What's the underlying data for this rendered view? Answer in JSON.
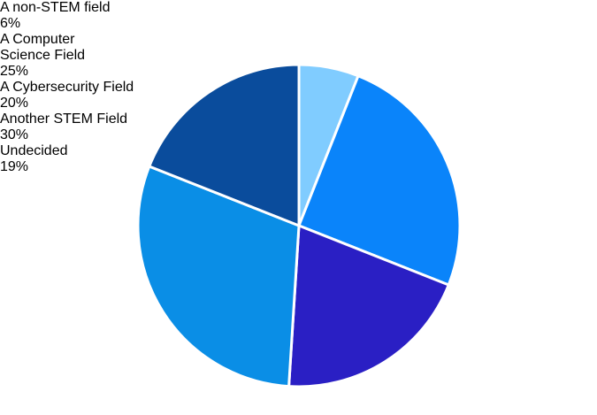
{
  "chart_data": {
    "type": "pie",
    "categories": [
      "A non-STEM field",
      "A Computer Science Field",
      "A Cybersecurity Field",
      "Another STEM Field",
      "Undecided"
    ],
    "values": [
      6,
      25,
      20,
      30,
      19
    ],
    "value_labels": [
      "6%",
      "25%",
      "20%",
      "30%",
      "19%"
    ],
    "colors": [
      "#80ccff",
      "#0a84fa",
      "#2a1fc4",
      "#0a8ee6",
      "#0a4c9c"
    ]
  }
}
